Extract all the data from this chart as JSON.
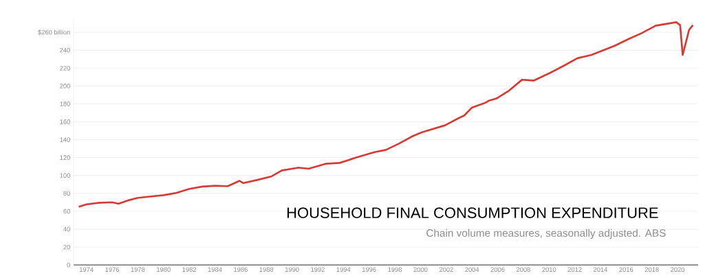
{
  "chart_data": {
    "type": "line",
    "title": "HOUSEHOLD FINAL CONSUMPTION EXPENDITURE",
    "subtitle": "Chain volume measures, seasonally adjusted. ABS",
    "x": [
      1973.4,
      1974.0,
      1975.0,
      1976.0,
      1976.5,
      1977.2,
      1978.0,
      1979.0,
      1980.0,
      1981.0,
      1982.0,
      1983.0,
      1984.0,
      1985.0,
      1985.9,
      1986.2,
      1987.3,
      1988.4,
      1989.2,
      1990.5,
      1991.3,
      1992.6,
      1993.7,
      1994.9,
      1996.4,
      1997.3,
      1998.3,
      1999.4,
      2000.1,
      2001.9,
      2002.9,
      2003.4,
      2004.0,
      2005.0,
      2005.3,
      2005.9,
      2006.9,
      2007.9,
      2008.8,
      2010.1,
      2011.2,
      2012.2,
      2013.3,
      2015.1,
      2016.2,
      2017.2,
      2018.3,
      2019.9,
      2020.2,
      2020.4,
      2020.9,
      2021.2
    ],
    "series": [
      {
        "color": "#d63a34",
        "values": [
          65,
          67.7,
          69.5,
          70,
          68.5,
          72,
          75,
          76.5,
          78,
          80.5,
          85,
          87.5,
          88.5,
          88,
          94,
          91.5,
          95,
          99,
          105.6,
          108.7,
          107.6,
          113,
          114,
          119.6,
          126,
          128.6,
          135.5,
          144,
          148.3,
          156,
          163.6,
          167,
          175.9,
          181,
          183.5,
          186,
          195,
          207,
          206,
          214.8,
          223,
          231,
          234.7,
          244.9,
          252.6,
          259,
          267.4,
          271.3,
          268,
          234.7,
          262.8,
          268
        ]
      }
    ],
    "xlim": [
      1973,
      2021.6
    ],
    "ylim": [
      0,
      275
    ],
    "xticks": [
      1974,
      1976,
      1978,
      1980,
      1982,
      1984,
      1986,
      1988,
      1990,
      1992,
      1994,
      1996,
      1998,
      2000,
      2002,
      2004,
      2006,
      2008,
      2010,
      2012,
      2014,
      2016,
      2018,
      2020
    ],
    "yticks": [
      0,
      20,
      40,
      60,
      80,
      100,
      120,
      140,
      160,
      180,
      200,
      220,
      240,
      {
        "value": 260,
        "label": "$260 billion"
      }
    ],
    "grid": "y",
    "marker": "none",
    "line_style": "solid"
  }
}
